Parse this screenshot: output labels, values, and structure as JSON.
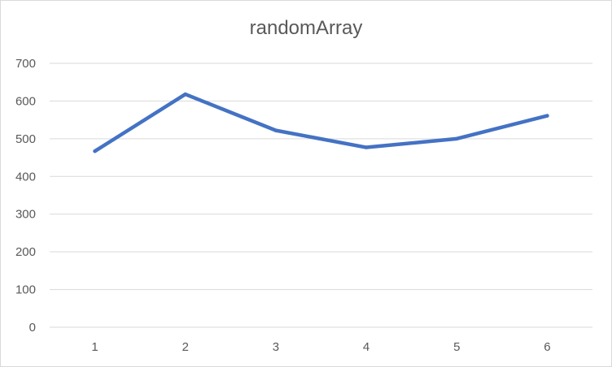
{
  "chart_data": {
    "type": "line",
    "title": "randomArray",
    "x": [
      1,
      2,
      3,
      4,
      5,
      6
    ],
    "series": [
      {
        "values": [
          467,
          618,
          522,
          477,
          500,
          561
        ]
      }
    ],
    "y_ticks": [
      0,
      100,
      200,
      300,
      400,
      500,
      600,
      700
    ],
    "ylim": [
      0,
      700
    ],
    "grid": true,
    "legend": "none",
    "colors": {
      "line": "#4472c4",
      "grid": "#d9d9d9",
      "text": "#595959"
    }
  }
}
